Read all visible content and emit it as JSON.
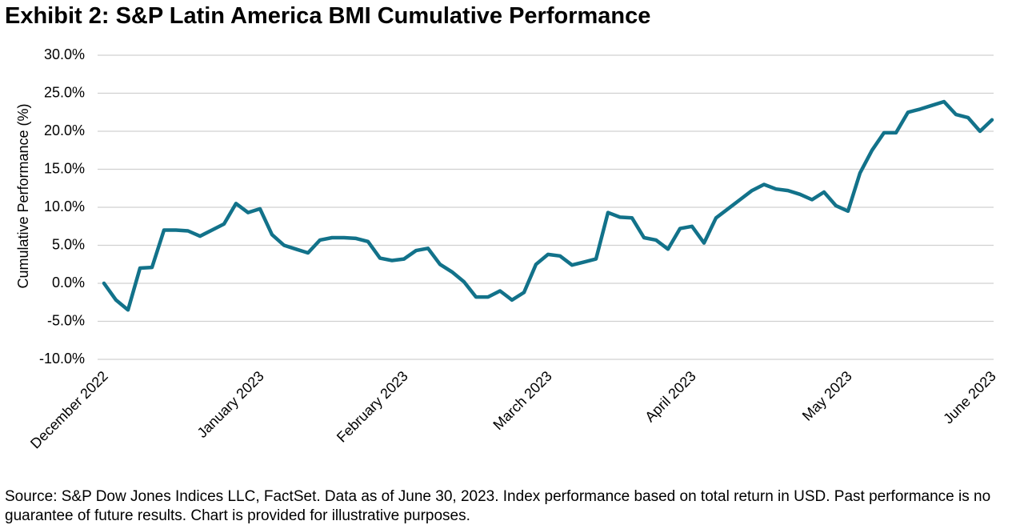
{
  "chart_data": {
    "type": "line",
    "title": "Exhibit 2: S&P Latin America BMI Cumulative Performance",
    "y_label": "Cumulative Performance (%)",
    "footnote": "Source: S&P Dow Jones Indices LLC, FactSet. Data as of June 30, 2023. Index performance based on total return in USD. Past performance is no guarantee of future results. Chart is provided for illustrative purposes.",
    "categories": [
      "December 2022",
      null,
      null,
      null,
      null,
      null,
      null,
      null,
      null,
      null,
      null,
      null,
      null,
      "January 2023",
      null,
      null,
      null,
      null,
      null,
      null,
      null,
      null,
      null,
      null,
      null,
      "February 2023",
      null,
      null,
      null,
      null,
      null,
      null,
      null,
      null,
      null,
      null,
      null,
      "March 2023",
      null,
      null,
      null,
      null,
      null,
      null,
      null,
      null,
      null,
      null,
      null,
      "April 2023",
      null,
      null,
      null,
      null,
      null,
      null,
      null,
      null,
      null,
      null,
      null,
      null,
      "May 2023",
      null,
      null,
      null,
      null,
      null,
      null,
      null,
      null,
      null,
      null,
      null,
      "June 2023"
    ],
    "series": [
      {
        "name": "S&P Latin America BMI",
        "color": "#12728a",
        "values": [
          0,
          -2.2,
          -3.5,
          2.0,
          2.1,
          7.0,
          7.0,
          6.9,
          6.2,
          7.0,
          7.8,
          10.5,
          9.3,
          9.8,
          6.4,
          5.0,
          4.5,
          4.0,
          5.7,
          6.0,
          6.0,
          5.9,
          5.5,
          3.3,
          3.0,
          3.2,
          4.3,
          4.6,
          2.5,
          1.5,
          0.2,
          -1.8,
          -1.8,
          -1.0,
          -2.2,
          -1.2,
          2.5,
          3.8,
          3.6,
          2.4,
          2.8,
          3.2,
          9.3,
          8.7,
          8.6,
          6.0,
          5.7,
          4.5,
          7.2,
          7.5,
          5.3,
          8.6,
          9.8,
          11.0,
          12.2,
          13.0,
          12.4,
          12.2,
          11.7,
          11.0,
          12.0,
          10.2,
          9.5,
          14.5,
          17.5,
          19.8,
          19.8,
          22.5,
          22.9,
          23.4,
          23.9,
          22.2,
          21.8,
          20.0,
          21.5
        ]
      }
    ],
    "ylim": [
      -10,
      30
    ],
    "yticks": [
      {
        "value": -10,
        "label": "-10.0%"
      },
      {
        "value": -5,
        "label": "-5.0%"
      },
      {
        "value": 0,
        "label": "0.0%"
      },
      {
        "value": 5,
        "label": "5.0%"
      },
      {
        "value": 10,
        "label": "10.0%"
      },
      {
        "value": 15,
        "label": "15.0%"
      },
      {
        "value": 20,
        "label": "20.0%"
      },
      {
        "value": 25,
        "label": "25.0%"
      },
      {
        "value": 30,
        "label": "30.0%"
      }
    ],
    "grid": true
  }
}
